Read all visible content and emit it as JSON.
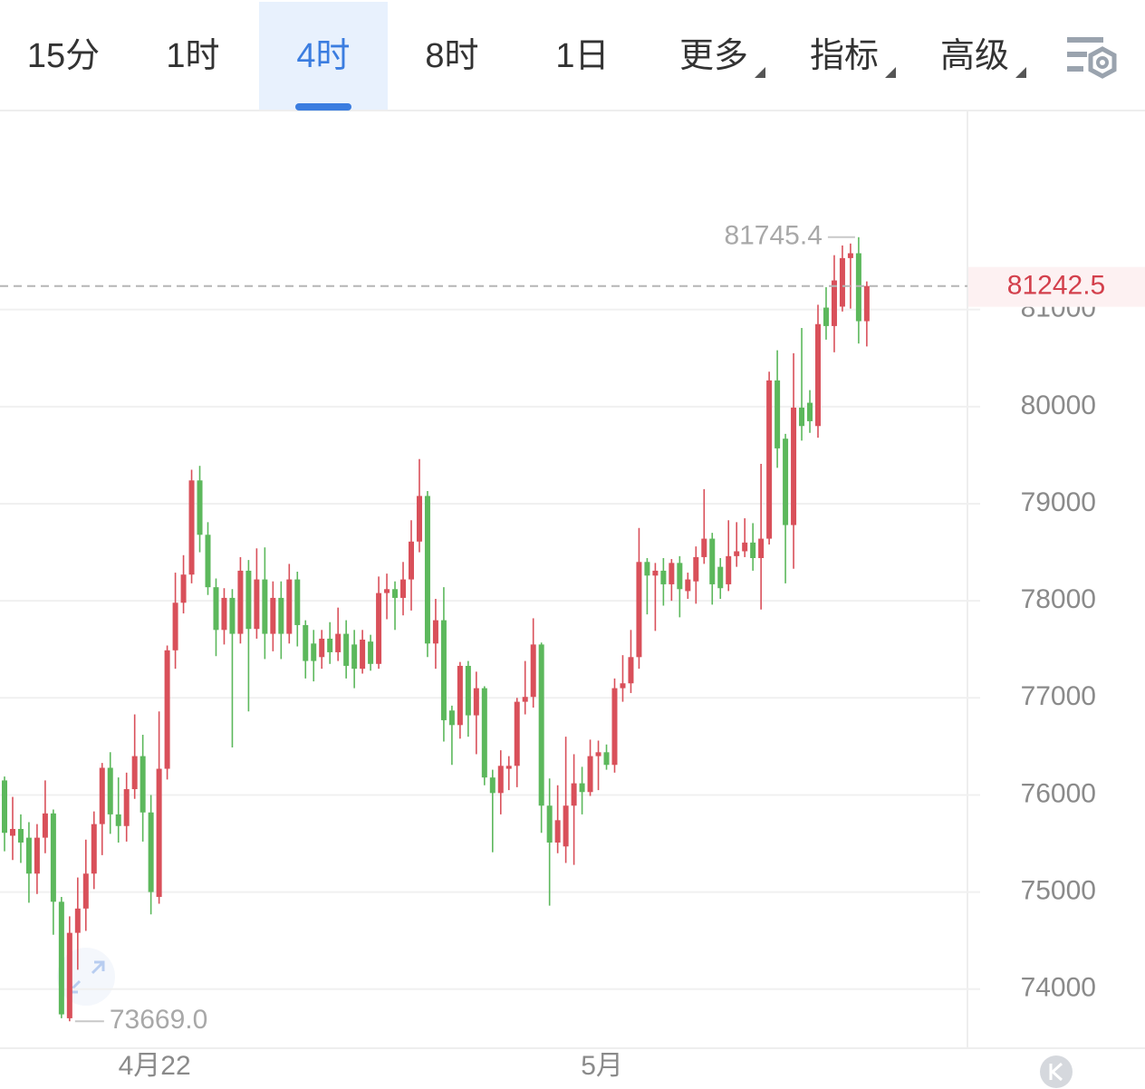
{
  "toolbar": {
    "tabs": [
      {
        "label": "15分",
        "dropdown": false
      },
      {
        "label": "1时",
        "dropdown": false
      },
      {
        "label": "4时",
        "dropdown": false
      },
      {
        "label": "8时",
        "dropdown": false
      },
      {
        "label": "1日",
        "dropdown": false
      },
      {
        "label": "更多",
        "dropdown": true
      },
      {
        "label": "指标",
        "dropdown": true
      },
      {
        "label": "高级",
        "dropdown": true
      }
    ],
    "active": 2
  },
  "chart_data": {
    "type": "candlestick",
    "categories": [
      null,
      null,
      null,
      null,
      null,
      null,
      null,
      null,
      null,
      null,
      null,
      null,
      null,
      null,
      null,
      null,
      null,
      null,
      "4月22",
      null,
      null,
      null,
      null,
      null,
      null,
      null,
      null,
      null,
      null,
      null,
      null,
      null,
      null,
      null,
      null,
      null,
      null,
      null,
      null,
      null,
      null,
      null,
      null,
      null,
      null,
      null,
      null,
      null,
      null,
      null,
      null,
      null,
      null,
      null,
      null,
      null,
      null,
      null,
      null,
      null,
      null,
      null,
      null,
      null,
      null,
      null,
      null,
      null,
      null,
      null,
      null,
      null,
      null,
      "5月",
      null,
      null,
      null,
      null,
      null,
      null,
      null,
      null,
      null,
      null,
      null,
      null,
      null,
      null,
      null,
      null,
      null,
      null,
      null,
      null,
      null,
      null,
      null,
      null,
      null,
      null,
      null,
      null,
      null,
      null,
      null,
      null,
      null
    ],
    "open": [
      76150,
      75580,
      75650,
      75560,
      75190,
      75560,
      75810,
      74900,
      73700,
      74580,
      74830,
      75190,
      75700,
      76280,
      75800,
      75680,
      76060,
      76400,
      75820,
      74950,
      76270,
      77490,
      77980,
      78270,
      79240,
      78680,
      78140,
      77700,
      78030,
      77660,
      78310,
      77710,
      78220,
      77660,
      78030,
      77660,
      78220,
      77750,
      77560,
      77420,
      77610,
      77470,
      77660,
      77550,
      77300,
      77580,
      77350,
      78080,
      78120,
      78030,
      78220,
      78610,
      79080,
      77560,
      77800,
      76870,
      76720,
      77330,
      76820,
      77100,
      76180,
      76020,
      76270,
      76300,
      76960,
      77010,
      77550,
      75890,
      75510,
      75470,
      75890,
      76120,
      76030,
      76400,
      76440,
      76310,
      77100,
      77150,
      77420,
      78400,
      78260,
      78310,
      78170,
      78390,
      78100,
      78200,
      78450,
      78640,
      78350,
      78170,
      78460,
      78510,
      78600,
      78440,
      78640,
      80270,
      79670,
      78780,
      79990,
      80040,
      79800,
      81020,
      80830,
      81030,
      81530,
      81580,
      80880
    ],
    "high": [
      76190,
      75980,
      75800,
      75720,
      75700,
      76150,
      75850,
      74950,
      74750,
      75150,
      75540,
      75830,
      76330,
      76440,
      76180,
      76230,
      76830,
      76620,
      76000,
      76860,
      77540,
      78290,
      78470,
      79350,
      79390,
      78810,
      78230,
      78130,
      78120,
      78450,
      78420,
      78540,
      78550,
      78200,
      78200,
      78380,
      78300,
      77800,
      77700,
      77700,
      77780,
      77930,
      77800,
      77700,
      77700,
      77650,
      78250,
      78280,
      78200,
      78400,
      78830,
      79460,
      79130,
      78020,
      78140,
      76920,
      77370,
      77380,
      77270,
      77120,
      76260,
      76460,
      76400,
      77000,
      77380,
      77820,
      77570,
      76170,
      76100,
      76600,
      76420,
      76290,
      76570,
      76560,
      76520,
      77200,
      77440,
      77700,
      78750,
      78440,
      78390,
      78440,
      78430,
      78460,
      78290,
      78560,
      79150,
      78700,
      78440,
      78830,
      78810,
      78850,
      78800,
      79410,
      80360,
      80580,
      79720,
      80550,
      80810,
      80170,
      81050,
      81230,
      81560,
      81660,
      81680,
      81745.4,
      81290
    ],
    "low": [
      75420,
      75330,
      75300,
      74890,
      74980,
      75400,
      74560,
      73700,
      73669,
      74200,
      74600,
      75030,
      75380,
      75600,
      75510,
      75520,
      75960,
      75520,
      74770,
      74880,
      76160,
      77300,
      77870,
      78180,
      78500,
      78060,
      77430,
      77550,
      76490,
      77560,
      76860,
      77610,
      77400,
      77480,
      77400,
      77560,
      77530,
      77200,
      77170,
      77300,
      77350,
      77380,
      77200,
      77100,
      77250,
      77280,
      77300,
      77810,
      77700,
      77850,
      77900,
      78500,
      77420,
      77300,
      76550,
      76310,
      76580,
      76600,
      76420,
      76100,
      75410,
      75800,
      76050,
      76080,
      76830,
      76900,
      75610,
      74860,
      75400,
      75300,
      75280,
      75800,
      75990,
      76050,
      76260,
      76230,
      76960,
      77050,
      77300,
      77860,
      77690,
      77950,
      78000,
      77830,
      78020,
      77970,
      78380,
      77960,
      78020,
      78100,
      78350,
      78450,
      78310,
      77910,
      78580,
      79370,
      78180,
      78330,
      79650,
      79730,
      79680,
      80690,
      80560,
      80980,
      81010,
      80650,
      80620
    ],
    "close": [
      75610,
      75650,
      75510,
      75190,
      75560,
      75810,
      74900,
      73740,
      74580,
      74830,
      75190,
      75700,
      76280,
      75800,
      75680,
      76060,
      76400,
      75820,
      75000,
      76270,
      77490,
      77980,
      78270,
      79240,
      78680,
      78140,
      77700,
      78030,
      77660,
      78310,
      77710,
      78220,
      77660,
      78030,
      77660,
      78220,
      77750,
      77380,
      77380,
      77610,
      77470,
      77660,
      77330,
      77300,
      77600,
      77350,
      78080,
      78120,
      78030,
      78220,
      78610,
      79080,
      77560,
      77800,
      76770,
      76720,
      77330,
      76820,
      77100,
      76180,
      76020,
      76300,
      76300,
      76960,
      77010,
      77550,
      75890,
      75510,
      75740,
      75890,
      76120,
      76030,
      76400,
      76440,
      76310,
      77100,
      77150,
      77420,
      78400,
      78260,
      78310,
      78170,
      78390,
      78120,
      78220,
      78450,
      78640,
      78170,
      78130,
      78460,
      78510,
      78600,
      78440,
      78640,
      80270,
      79570,
      78780,
      79990,
      79800,
      79850,
      80850,
      80830,
      81300,
      81530,
      81580,
      80880,
      81242.5
    ],
    "up_color": "#d9505a",
    "down_color": "#5cb85c",
    "ylim": [
      73410,
      83050
    ],
    "yticks": [
      74000,
      75000,
      76000,
      77000,
      78000,
      79000,
      80000,
      81000
    ],
    "grid": true,
    "high_label": 81745.4,
    "low_label": {
      "value": 73669,
      "label": "73669.0"
    },
    "last_price": 81242.5
  }
}
